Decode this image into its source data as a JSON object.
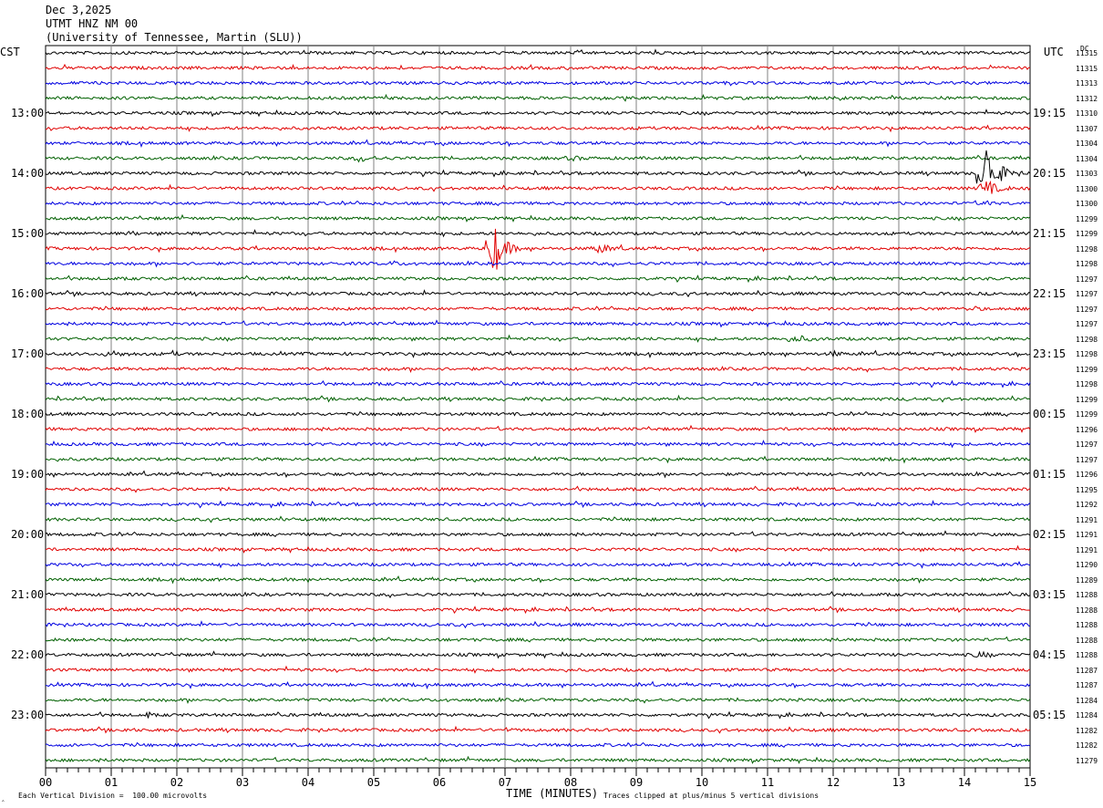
{
  "header": {
    "date": "Dec 3,2025",
    "station": "UTMT HNZ NM 00",
    "network": "(University of Tennessee, Martin (SLU))"
  },
  "left_tz": "CST",
  "right_tz": "UTC",
  "dc_header": "DC",
  "footer": {
    "scale_note": "Each Vertical Division =  100.00 microvolts",
    "clip_note": "Traces clipped at plus/minus 5 vertical divisions",
    "corner_mark": "‸"
  },
  "colors": [
    "#000000",
    "#e00000",
    "#0000e0",
    "#006000"
  ],
  "chart_data": {
    "type": "line",
    "title": "UTMT HNZ NM 00",
    "xlabel": "TIME (MINUTES)",
    "ylabel": "",
    "xlim": [
      0,
      15
    ],
    "x_ticks": [
      "00",
      "01",
      "02",
      "03",
      "04",
      "05",
      "06",
      "07",
      "08",
      "09",
      "10",
      "11",
      "12",
      "13",
      "14",
      "15"
    ],
    "left_hour_labels": [
      "13:00",
      "14:00",
      "15:00",
      "16:00",
      "17:00",
      "18:00",
      "19:00",
      "20:00",
      "21:00",
      "22:00",
      "23:00"
    ],
    "right_hour_labels": [
      "19:15",
      "20:15",
      "21:15",
      "22:15",
      "23:15",
      "00:15",
      "01:15",
      "02:15",
      "03:15",
      "04:15",
      "05:15"
    ],
    "dc_offsets": [
      "11315",
      "11315",
      "11313",
      "11312",
      "11310",
      "11307",
      "11304",
      "11304",
      "11303",
      "11300",
      "11300",
      "11299",
      "11299",
      "11298",
      "11298",
      "11297",
      "11297",
      "11297",
      "11297",
      "11298",
      "11298",
      "11299",
      "11298",
      "11299",
      "11299",
      "11296",
      "11297",
      "11297",
      "11296",
      "11295",
      "11292",
      "11291",
      "11291",
      "11291",
      "11290",
      "11289",
      "11288",
      "11288",
      "11288",
      "11288",
      "11288",
      "11287",
      "11287",
      "11284",
      "11284",
      "11282",
      "11282",
      "11279"
    ],
    "events": [
      {
        "trace": 7,
        "minute": 4.8,
        "amp": 3,
        "dur": 0.6
      },
      {
        "trace": 7,
        "minute": 8.0,
        "amp": 2,
        "dur": 0.5
      },
      {
        "trace": 8,
        "minute": 14.3,
        "amp": 40,
        "dur": 0.6
      },
      {
        "trace": 9,
        "minute": 14.3,
        "amp": 12,
        "dur": 0.5
      },
      {
        "trace": 10,
        "minute": 14.3,
        "amp": 6,
        "dur": 0.2
      },
      {
        "trace": 12,
        "minute": 1.3,
        "amp": 2.5,
        "dur": 0.2
      },
      {
        "trace": 13,
        "minute": 6.8,
        "amp": 40,
        "dur": 0.5
      },
      {
        "trace": 13,
        "minute": 8.4,
        "amp": 5,
        "dur": 0.6
      },
      {
        "trace": 14,
        "minute": 5.3,
        "amp": 2,
        "dur": 0.3
      },
      {
        "trace": 17,
        "minute": 14.1,
        "amp": 3,
        "dur": 0.3
      },
      {
        "trace": 19,
        "minute": 11.4,
        "amp": 4,
        "dur": 0.6
      },
      {
        "trace": 20,
        "minute": 1.0,
        "amp": 3,
        "dur": 0.6
      },
      {
        "trace": 20,
        "minute": 1.95,
        "amp": 8,
        "dur": 0.1
      },
      {
        "trace": 20,
        "minute": 12.0,
        "amp": 3,
        "dur": 0.3
      },
      {
        "trace": 29,
        "minute": 5.8,
        "amp": 3,
        "dur": 0.1
      },
      {
        "trace": 40,
        "minute": 14.2,
        "amp": 4,
        "dur": 0.4
      },
      {
        "trace": 44,
        "minute": 1.55,
        "amp": 8,
        "dur": 0.08
      },
      {
        "trace": 45,
        "minute": 1.2,
        "amp": 2,
        "dur": 0.3
      },
      {
        "trace": 45,
        "minute": 7.0,
        "amp": 2,
        "dur": 0.2
      }
    ]
  }
}
